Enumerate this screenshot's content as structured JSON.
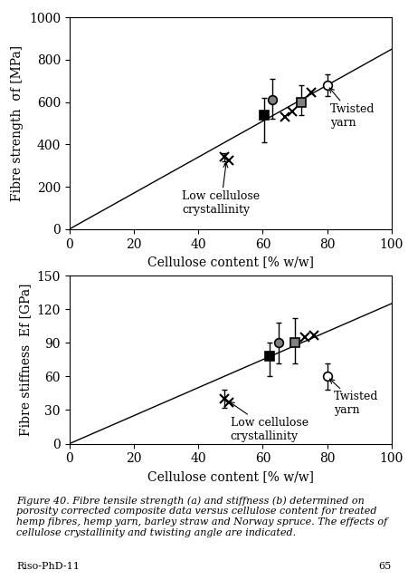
{
  "chart_data": [
    {
      "type": "scatter",
      "x_label": "Cellulose content [% w/w]",
      "y_label": "Fibre strength  σf [MPa]",
      "xlim": [
        0,
        100
      ],
      "ylim": [
        0,
        1000
      ],
      "xticks": [
        0,
        20,
        40,
        60,
        80,
        100
      ],
      "yticks": [
        0,
        200,
        400,
        600,
        800,
        1000
      ],
      "grid": false,
      "series": [
        {
          "type": "line",
          "line_style": "solid",
          "color": "black",
          "x": [
            0,
            100
          ],
          "values": [
            0,
            850
          ]
        },
        {
          "type": "scatter",
          "marker": "x",
          "color": "black",
          "x": [
            48.0,
            49.5,
            67.0,
            69.0,
            75.0
          ],
          "values": [
            340,
            325,
            530,
            555,
            645
          ],
          "yerr_lo": [
            20,
            0,
            0,
            0,
            0
          ],
          "yerr_hi": [
            20,
            0,
            0,
            0,
            0
          ]
        },
        {
          "type": "scatter",
          "marker": "square",
          "color": "black",
          "x": [
            60.5
          ],
          "values": [
            540
          ],
          "yerr_lo": [
            130
          ],
          "yerr_hi": [
            80
          ]
        },
        {
          "type": "scatter",
          "marker": "circle",
          "color": "gray",
          "x": [
            63.0
          ],
          "values": [
            610
          ],
          "yerr_lo": [
            90
          ],
          "yerr_hi": [
            100
          ]
        },
        {
          "type": "scatter",
          "marker": "square",
          "color": "gray",
          "x": [
            72.0
          ],
          "values": [
            600
          ],
          "yerr_lo": [
            60
          ],
          "yerr_hi": [
            80
          ]
        },
        {
          "type": "scatter",
          "marker": "circle",
          "color": "white",
          "x": [
            80.0
          ],
          "values": [
            680
          ],
          "yerr_lo": [
            50
          ],
          "yerr_hi": [
            50
          ]
        }
      ],
      "annotations": [
        {
          "text": "Low cellulose\ncrystallinity",
          "xy": [
            48.8,
            330
          ],
          "xytext": [
            35,
            185
          ]
        },
        {
          "text": "Twisted\nyarn",
          "xy": [
            80.0,
            680
          ],
          "xytext": [
            81,
            595
          ]
        }
      ]
    },
    {
      "type": "scatter",
      "x_label": "Cellulose content [% w/w]",
      "y_label": "Fibre stiffness  Ef [GPa]",
      "xlim": [
        0,
        100
      ],
      "ylim": [
        0,
        150
      ],
      "xticks": [
        0,
        20,
        40,
        60,
        80,
        100
      ],
      "yticks": [
        0,
        30,
        60,
        90,
        120,
        150
      ],
      "grid": false,
      "series": [
        {
          "type": "line",
          "line_style": "solid",
          "color": "black",
          "x": [
            0,
            100
          ],
          "values": [
            0,
            125
          ]
        },
        {
          "type": "scatter",
          "marker": "x",
          "color": "black",
          "x": [
            48.0,
            49.5,
            73.0,
            76.0
          ],
          "values": [
            40,
            37,
            95,
            97
          ],
          "yerr_lo": [
            8,
            0,
            0,
            0
          ],
          "yerr_hi": [
            8,
            0,
            0,
            0
          ]
        },
        {
          "type": "scatter",
          "marker": "square",
          "color": "black",
          "x": [
            62.0
          ],
          "values": [
            78
          ],
          "yerr_lo": [
            18
          ],
          "yerr_hi": [
            12
          ]
        },
        {
          "type": "scatter",
          "marker": "circle",
          "color": "gray",
          "x": [
            65.0
          ],
          "values": [
            90
          ],
          "yerr_lo": [
            18
          ],
          "yerr_hi": [
            18
          ]
        },
        {
          "type": "scatter",
          "marker": "square",
          "color": "gray",
          "x": [
            70.0
          ],
          "values": [
            90
          ],
          "yerr_lo": [
            18
          ],
          "yerr_hi": [
            22
          ]
        },
        {
          "type": "scatter",
          "marker": "circle",
          "color": "white",
          "x": [
            80.0
          ],
          "values": [
            60
          ],
          "yerr_lo": [
            12
          ],
          "yerr_hi": [
            12
          ]
        }
      ],
      "annotations": [
        {
          "text": "Low cellulose\ncrystallinity",
          "xy": [
            48.8,
            39
          ],
          "xytext": [
            50,
            24
          ]
        },
        {
          "text": "Twisted\nyarn",
          "xy": [
            80.0,
            60
          ],
          "xytext": [
            82,
            47
          ]
        }
      ]
    }
  ],
  "caption": "Figure 40. Fibre tensile strength (a) and stiffness (b) determined on porosity corrected composite data versus cellulose content for treated hemp fibres, hemp yarn, barley straw and Norway spruce. The effects of cellulose crystallinity and twisting angle are indicated.",
  "footer_left": "Riso-PhD-11",
  "footer_right": "65"
}
